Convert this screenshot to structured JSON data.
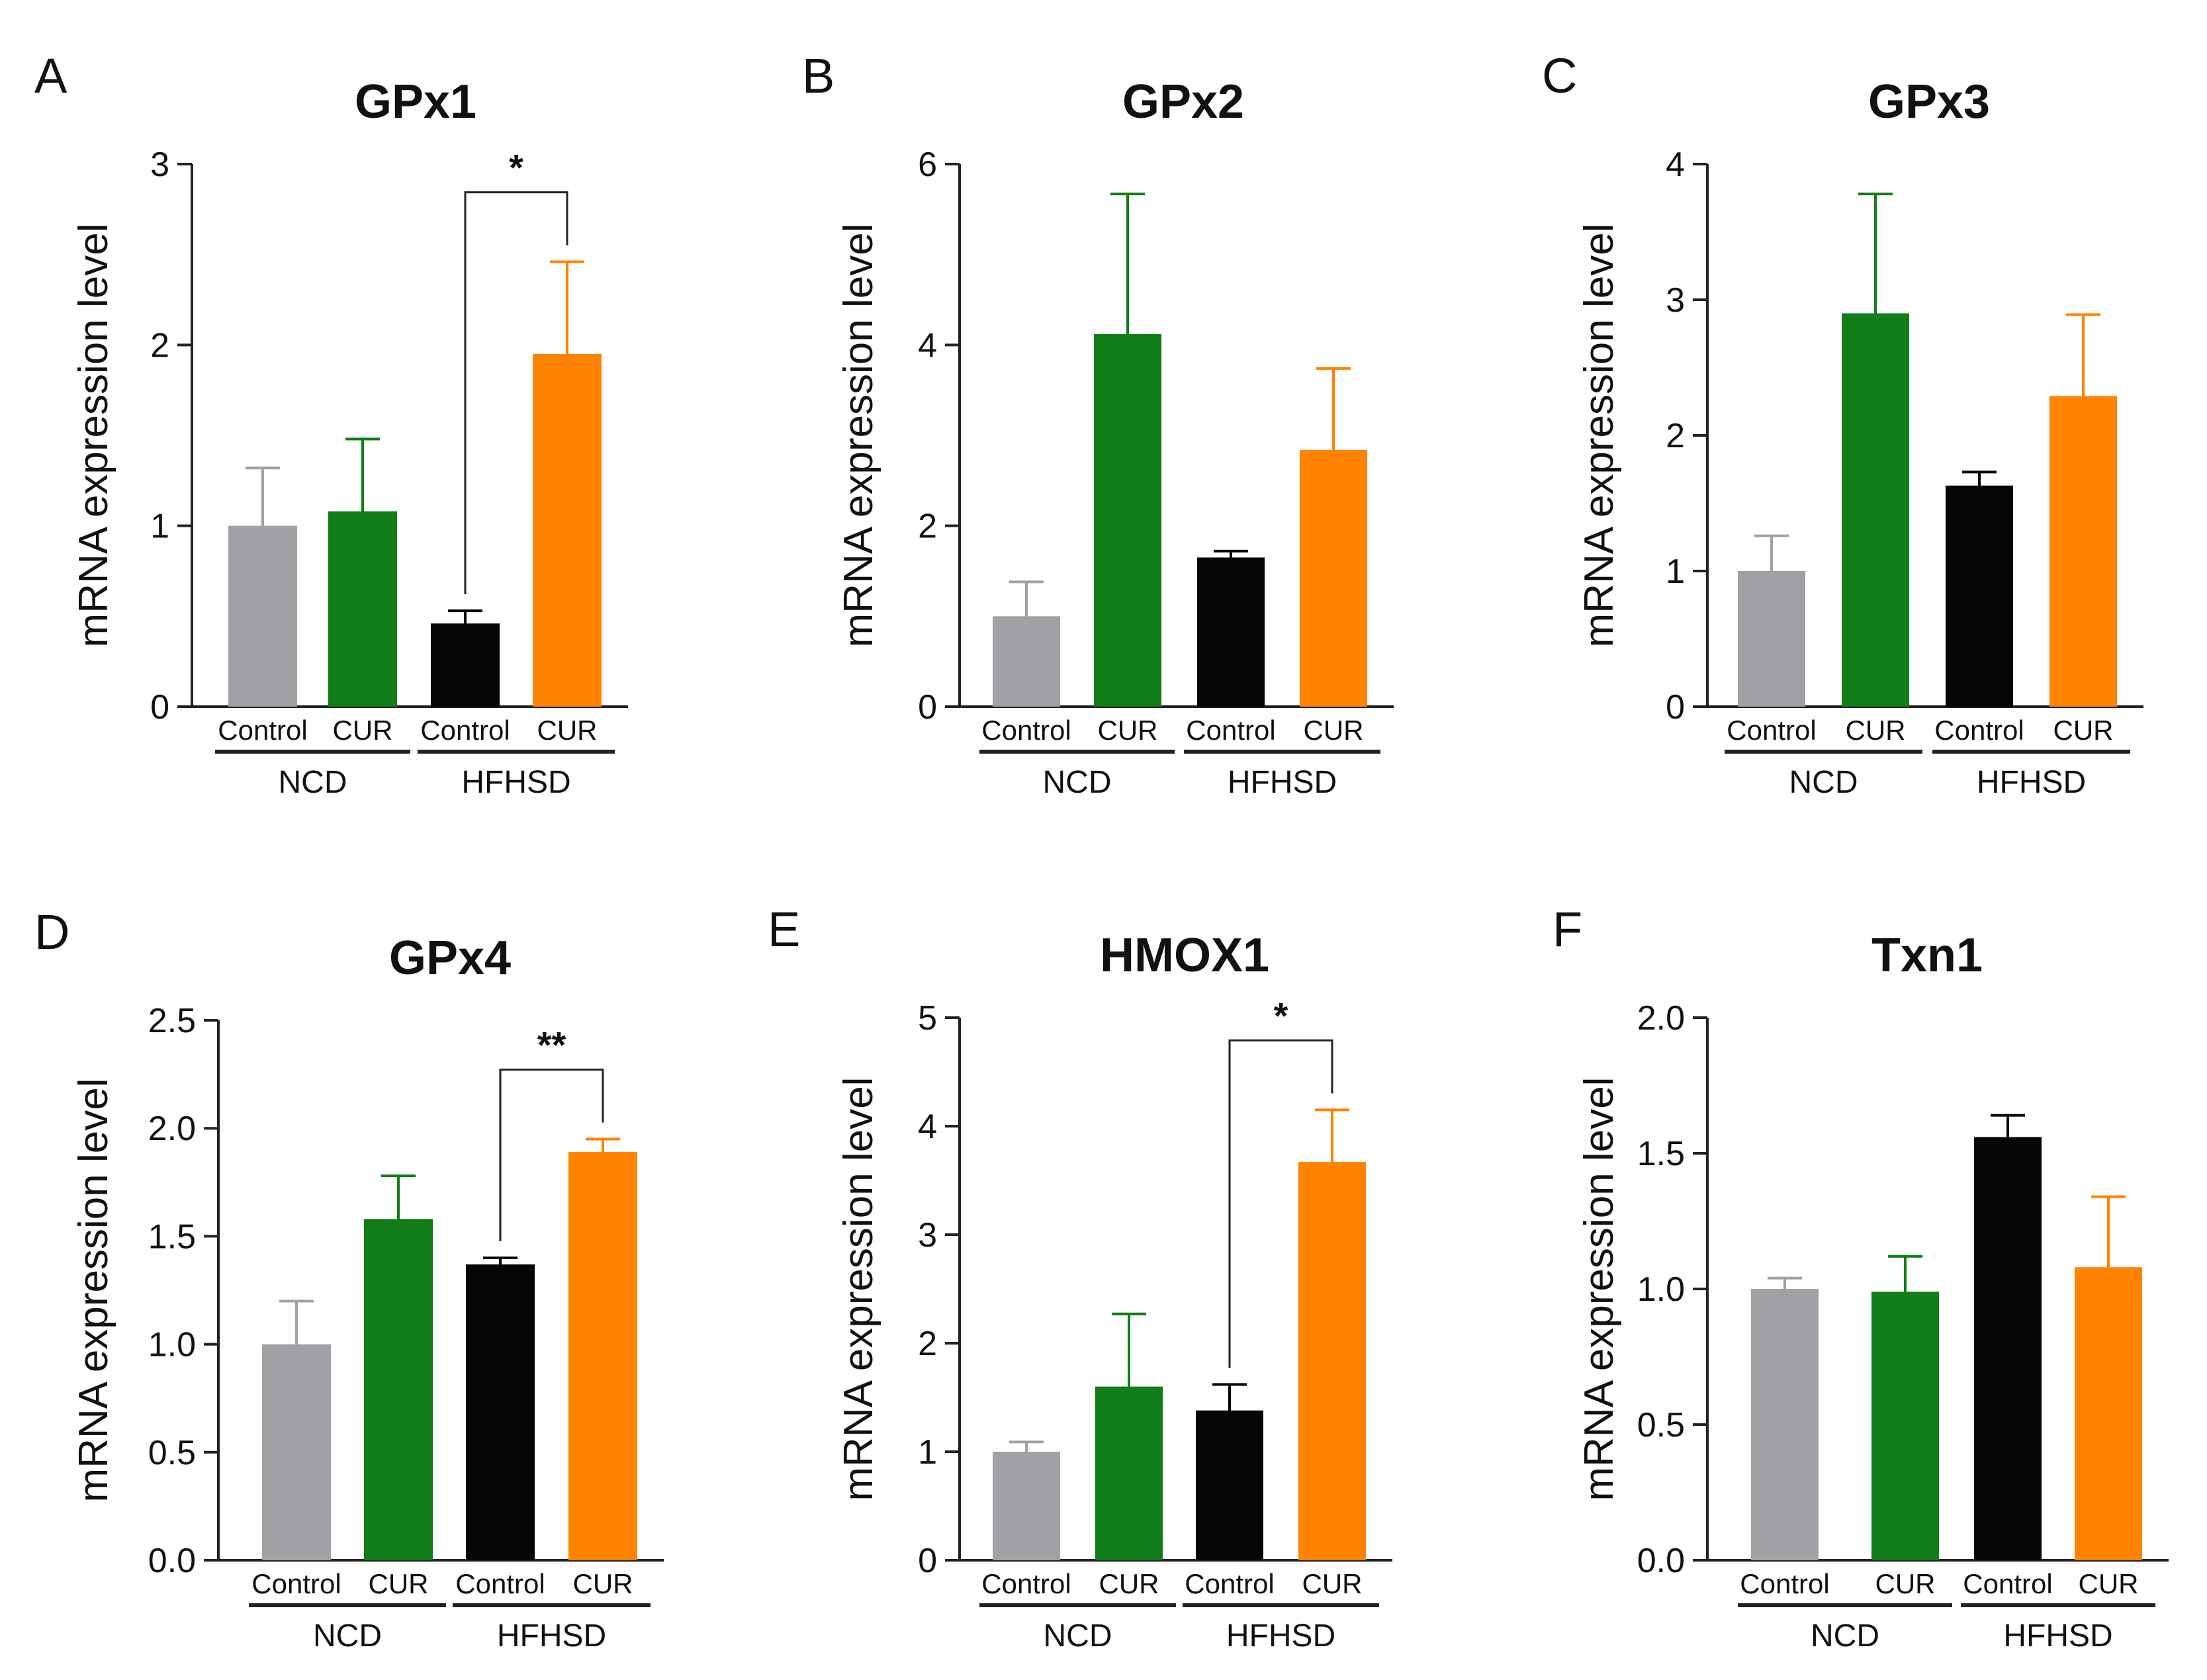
{
  "colors": {
    "ncd_control": "#a0a0a5",
    "ncd_cur": "#117d19",
    "hfhsd_control": "#050505",
    "hfhsd_cur": "#ff8200",
    "axis": "#222222"
  },
  "chart_data": [
    {
      "type": "bar",
      "letter": "A",
      "title": "GPx1",
      "ylabel": "mRNA expression level",
      "categories": [
        "Control",
        "CUR",
        "Control",
        "CUR"
      ],
      "groups": [
        "NCD",
        "HFHSD"
      ],
      "values": [
        1.0,
        1.08,
        0.46,
        1.95
      ],
      "errors": [
        0.32,
        0.4,
        0.07,
        0.51
      ],
      "ylim": [
        0,
        3
      ],
      "yticks": [
        "0",
        "1",
        "2",
        "3"
      ],
      "significance": [
        {
          "from": 2,
          "to": 3,
          "label": "*"
        }
      ]
    },
    {
      "type": "bar",
      "letter": "B",
      "title": "GPx2",
      "ylabel": "mRNA expression level",
      "categories": [
        "Control",
        "CUR",
        "Control",
        "CUR"
      ],
      "groups": [
        "NCD",
        "HFHSD"
      ],
      "values": [
        1.0,
        4.12,
        1.65,
        2.84
      ],
      "errors": [
        0.38,
        1.55,
        0.07,
        0.9
      ],
      "ylim": [
        0,
        6
      ],
      "yticks": [
        "0",
        "2",
        "4",
        "6"
      ],
      "significance": []
    },
    {
      "type": "bar",
      "letter": "C",
      "title": "GPx3",
      "ylabel": "mRNA expression level",
      "categories": [
        "Control",
        "CUR",
        "Control",
        "CUR"
      ],
      "groups": [
        "NCD",
        "HFHSD"
      ],
      "values": [
        1.0,
        2.9,
        1.63,
        2.29
      ],
      "errors": [
        0.26,
        0.88,
        0.1,
        0.6
      ],
      "ylim": [
        0,
        4
      ],
      "yticks": [
        "0",
        "1",
        "2",
        "3",
        "4"
      ],
      "significance": []
    },
    {
      "type": "bar",
      "letter": "D",
      "title": "GPx4",
      "ylabel": "mRNA expression level",
      "categories": [
        "Control",
        "CUR",
        "Control",
        "CUR"
      ],
      "groups": [
        "NCD",
        "HFHSD"
      ],
      "values": [
        1.0,
        1.58,
        1.37,
        1.89
      ],
      "errors": [
        0.2,
        0.2,
        0.03,
        0.06
      ],
      "ylim": [
        0,
        2.5
      ],
      "yticks": [
        "0.0",
        "0.5",
        "1.0",
        "1.5",
        "2.0",
        "2.5"
      ],
      "significance": [
        {
          "from": 2,
          "to": 3,
          "label": "**"
        }
      ]
    },
    {
      "type": "bar",
      "letter": "E",
      "title": "HMOX1",
      "ylabel": "mRNA expression level",
      "categories": [
        "Control",
        "CUR",
        "Control",
        "CUR"
      ],
      "groups": [
        "NCD",
        "HFHSD"
      ],
      "values": [
        1.0,
        1.6,
        1.38,
        3.67
      ],
      "errors": [
        0.09,
        0.67,
        0.24,
        0.48
      ],
      "ylim": [
        0,
        5
      ],
      "yticks": [
        "0",
        "1",
        "2",
        "3",
        "4",
        "5"
      ],
      "significance": [
        {
          "from": 2,
          "to": 3,
          "label": "*"
        }
      ]
    },
    {
      "type": "bar",
      "letter": "F",
      "title": "Txn1",
      "ylabel": "mRNA expression level",
      "categories": [
        "Control",
        "CUR",
        "Control",
        "CUR"
      ],
      "groups": [
        "NCD",
        "HFHSD"
      ],
      "values": [
        1.0,
        0.99,
        1.56,
        1.08
      ],
      "errors": [
        0.04,
        0.13,
        0.08,
        0.26
      ],
      "ylim": [
        0,
        2.0
      ],
      "yticks": [
        "0.0",
        "0.5",
        "1.0",
        "1.5",
        "2.0"
      ],
      "significance": []
    }
  ]
}
